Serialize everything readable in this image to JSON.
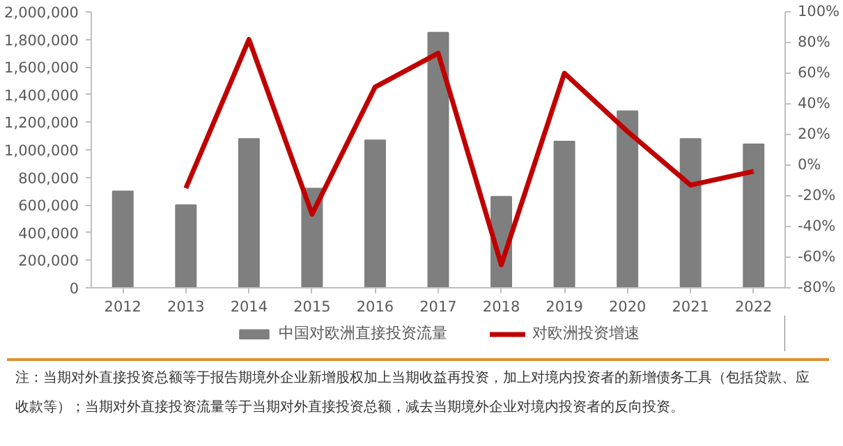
{
  "chart_data": {
    "type": "bar",
    "categories": [
      "2012",
      "2013",
      "2014",
      "2015",
      "2016",
      "2017",
      "2018",
      "2019",
      "2020",
      "2021",
      "2022"
    ],
    "series": [
      {
        "name": "中国对欧洲直接投资流量",
        "color": "#7f7f7f",
        "values": [
          700000,
          600000,
          1080000,
          720000,
          1070000,
          1850000,
          660000,
          1060000,
          1280000,
          1080000,
          1040000
        ]
      },
      {
        "name": "对欧洲投资增速",
        "type": "line",
        "axis": "y2",
        "color": "#c00000",
        "values": [
          null,
          -15,
          82,
          -32,
          51,
          73,
          -65,
          60,
          22,
          -13,
          -4
        ]
      }
    ],
    "ylim": [
      0,
      2000000
    ],
    "yticks": [
      {
        "value": 0,
        "label": "0"
      },
      {
        "value": 200000,
        "label": "200,000"
      },
      {
        "value": 400000,
        "label": "400,000"
      },
      {
        "value": 600000,
        "label": "600,000"
      },
      {
        "value": 800000,
        "label": "800,000"
      },
      {
        "value": 1000000,
        "label": "1,000,000"
      },
      {
        "value": 1200000,
        "label": "1,200,000"
      },
      {
        "value": 1400000,
        "label": "1,400,000"
      },
      {
        "value": 1600000,
        "label": "1,600,000"
      },
      {
        "value": 1800000,
        "label": "1,800,000"
      },
      {
        "value": 2000000,
        "label": "2,000,000"
      }
    ],
    "y2lim": [
      -80,
      100
    ],
    "y2ticks": [
      {
        "value": -80,
        "label": "-80%"
      },
      {
        "value": -60,
        "label": "-60%"
      },
      {
        "value": -40,
        "label": "-40%"
      },
      {
        "value": -20,
        "label": "-20%"
      },
      {
        "value": 0,
        "label": "0%"
      },
      {
        "value": 20,
        "label": "20%"
      },
      {
        "value": 40,
        "label": "40%"
      },
      {
        "value": 60,
        "label": "60%"
      },
      {
        "value": 80,
        "label": "80%"
      },
      {
        "value": 100,
        "label": "100%"
      }
    ],
    "grid": false,
    "legend": "bottom",
    "marker": "none",
    "line_style": "solid",
    "annotations": [
      "注：当期对外直接投资总额等于报告期境外企业新增股权加上当期收益再投资，加上对境内投资者的新增债务工具（包括贷款、应收款等）；当期对外直接投资流量等于当期对外直接投资总额，减去当期境外企业对境内投资者的反向投资。"
    ]
  }
}
